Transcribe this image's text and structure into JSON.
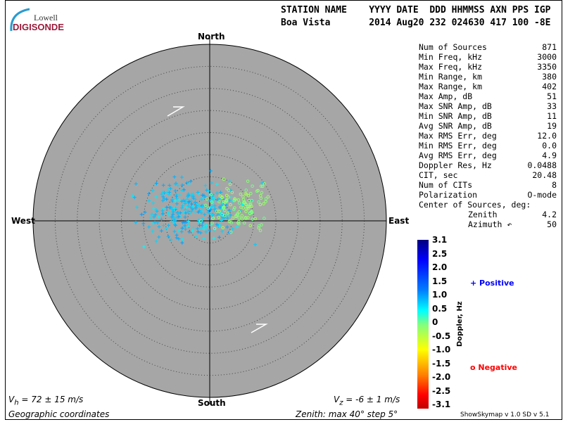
{
  "header": {
    "labels": "STATION NAME    YYYY DATE  DDD HHMMSS AXN PPS IGP",
    "values": "Boa Vista       2014 Aug20 232 024630 417 100 -8E"
  },
  "logo": {
    "top": "Lowell",
    "bottom": "DIGISONDE"
  },
  "stats": [
    [
      "Num of Sources",
      "871"
    ],
    [
      "Min Freq, kHz",
      "3000"
    ],
    [
      "Max Freq, kHz",
      "3350"
    ],
    [
      "Min Range, km",
      "380"
    ],
    [
      "Max Range, km",
      "402"
    ],
    [
      "Max Amp, dB",
      "51"
    ],
    [
      "Max SNR Amp, dB",
      "33"
    ],
    [
      "Min SNR Amp, dB",
      "11"
    ],
    [
      "Avg SNR Amp, dB",
      "19"
    ],
    [
      "Max RMS Err, deg",
      "12.0"
    ],
    [
      "Min RMS Err, deg",
      "0.0"
    ],
    [
      "Avg RMS Err, deg",
      "4.9"
    ],
    [
      "Doppler Res, Hz",
      "0.0488"
    ],
    [
      "CIT, sec",
      "20.48"
    ],
    [
      "Num of CITs",
      "8"
    ],
    [
      "Polarization",
      "O-mode"
    ]
  ],
  "center": {
    "title": "Center of Sources, deg:",
    "zenith_label": "Zenith",
    "zenith": "4.2",
    "azimuth_label": "Azimuth ↶",
    "azimuth": "50"
  },
  "chart_data": {
    "type": "scatter",
    "projection": "polar skymap",
    "directions": {
      "north": "North",
      "south": "South",
      "east": "East",
      "west": "West"
    },
    "zenith_max_deg": 40,
    "zenith_step_deg": 5,
    "center_of_sources": {
      "zenith_deg": 4.2,
      "azimuth_deg": 50
    },
    "colorbar": {
      "label": "Doppler, Hz",
      "range": [
        -3.1,
        3.1
      ],
      "ticks": [
        "3.1",
        "2.5",
        "2.0",
        "1.5",
        "1.0",
        "0.5",
        "0",
        "-0.5",
        "-1.0",
        "-1.5",
        "-2.0",
        "-2.5",
        "-3.1"
      ]
    },
    "legend": {
      "positive": "Positive",
      "negative": "Negative",
      "positive_color": "#0000ff",
      "negative_color": "#ff0000"
    },
    "background": "#a6a6a6"
  },
  "footer": {
    "vh": "V",
    "vh_sub": "h",
    "vh_val": " = 72 ± 15 m/s",
    "vz": "V",
    "vz_sub": "z",
    "vz_val": " = -6 ± 1 m/s",
    "coords": "Geographic coordinates",
    "zenith": "Zenith: max 40°  step 5°",
    "version": "ShowSkymap v 1.0   SD v 5.1"
  }
}
